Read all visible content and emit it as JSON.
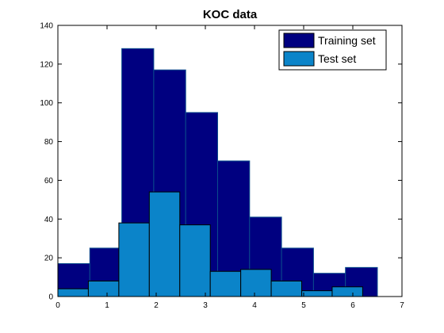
{
  "chart_data": {
    "type": "bar",
    "title": "KOC data",
    "xlabel": "",
    "ylabel": "",
    "xlim": [
      0,
      7
    ],
    "ylim": [
      0,
      140
    ],
    "xticks": [
      0,
      1,
      2,
      3,
      4,
      5,
      6,
      7
    ],
    "yticks": [
      0,
      20,
      40,
      60,
      80,
      100,
      120,
      140
    ],
    "grid": false,
    "legend_position": "top-right",
    "series": [
      {
        "name": "Training set",
        "color": "#000080",
        "edge_color": "#0a4c8c",
        "bin_edges": [
          0.0,
          0.65,
          1.3,
          1.95,
          2.6,
          3.25,
          3.9,
          4.55,
          5.2,
          5.85,
          6.5
        ],
        "values": [
          17,
          25,
          128,
          117,
          95,
          70,
          41,
          25,
          12,
          15
        ]
      },
      {
        "name": "Test set",
        "color": "#0b84c9",
        "edge_color": "#000000",
        "bin_edges": [
          0.0,
          0.62,
          1.24,
          1.86,
          2.48,
          3.1,
          3.72,
          4.34,
          4.96,
          5.58,
          6.2
        ],
        "values": [
          4,
          8,
          38,
          54,
          37,
          13,
          14,
          8,
          3,
          5
        ]
      }
    ]
  }
}
